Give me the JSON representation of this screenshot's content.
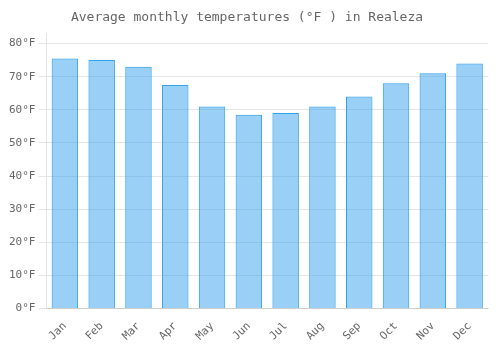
{
  "chart_data": {
    "type": "bar",
    "title": "Average monthly temperatures (°F ) in Realeza",
    "categories": [
      "Jan",
      "Feb",
      "Mar",
      "Apr",
      "May",
      "Jun",
      "Jul",
      "Aug",
      "Sep",
      "Oct",
      "Nov",
      "Dec"
    ],
    "values": [
      75.5,
      75.0,
      73.0,
      67.5,
      61.0,
      58.5,
      59.0,
      61.0,
      64.0,
      68.0,
      71.0,
      74.0
    ],
    "ylim": [
      0,
      83
    ],
    "yticks": [
      {
        "value": 0,
        "label": "0°F"
      },
      {
        "value": 10,
        "label": "10°F"
      },
      {
        "value": 20,
        "label": "20°F"
      },
      {
        "value": 30,
        "label": "30°F"
      },
      {
        "value": 40,
        "label": "40°F"
      },
      {
        "value": 50,
        "label": "50°F"
      },
      {
        "value": 60,
        "label": "60°F"
      },
      {
        "value": 70,
        "label": "70°F"
      },
      {
        "value": 80,
        "label": "80°F"
      }
    ],
    "grid": true
  }
}
